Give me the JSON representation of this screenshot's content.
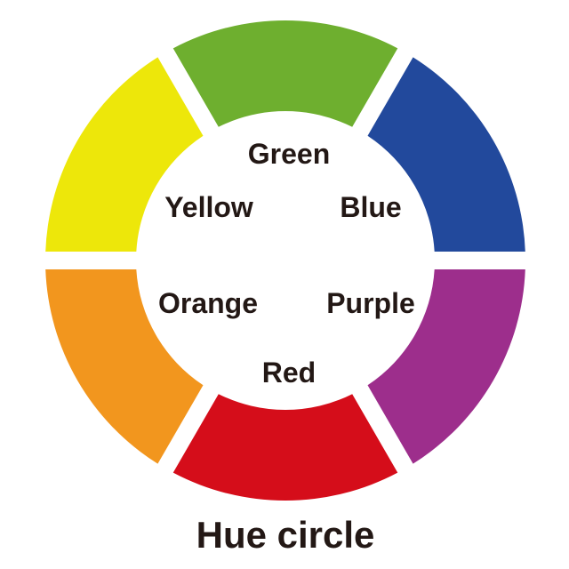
{
  "title": "Hue circle",
  "segments": [
    {
      "name": "Green",
      "color": "#6EAF2F"
    },
    {
      "name": "Blue",
      "color": "#22499C"
    },
    {
      "name": "Purple",
      "color": "#9D2E8C"
    },
    {
      "name": "Red",
      "color": "#D50D1A"
    },
    {
      "name": "Orange",
      "color": "#F2961E"
    },
    {
      "name": "Yellow",
      "color": "#EDE70A"
    }
  ],
  "labels": {
    "green": "Green",
    "yellow": "Yellow",
    "blue": "Blue",
    "orange": "Orange",
    "purple": "Purple",
    "red": "Red"
  }
}
